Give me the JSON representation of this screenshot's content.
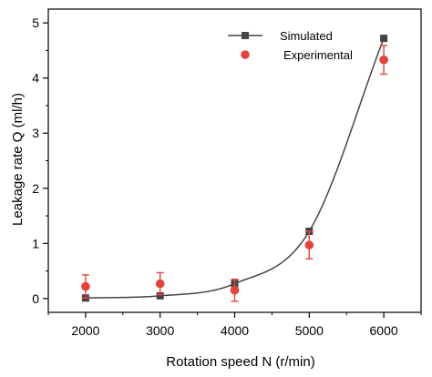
{
  "chart_data": {
    "type": "scatter",
    "title": "",
    "xlabel": "Rotation speed N (r/min)",
    "ylabel": "Leakage rate Q (ml/h)",
    "xlim": [
      1500,
      6500
    ],
    "ylim": [
      -0.25,
      5.25
    ],
    "x_ticks": [
      2000,
      3000,
      4000,
      5000,
      6000
    ],
    "y_ticks": [
      0,
      1,
      2,
      3,
      4,
      5
    ],
    "grid": false,
    "legend_position": "top-right",
    "series": [
      {
        "name": "Simulated",
        "kind": "line-with-square-markers",
        "color": "#444444",
        "x": [
          2000,
          3000,
          4000,
          5000,
          6000
        ],
        "y": [
          0.01,
          0.05,
          0.27,
          1.22,
          4.72
        ]
      },
      {
        "name": "Experimental",
        "kind": "circle-markers-with-error-bars",
        "color": "#e8413c",
        "x": [
          2000,
          3000,
          4000,
          5000,
          6000
        ],
        "y": [
          0.22,
          0.27,
          0.15,
          0.97,
          4.33
        ],
        "error": [
          0.21,
          0.2,
          0.2,
          0.25,
          0.26
        ]
      }
    ]
  }
}
